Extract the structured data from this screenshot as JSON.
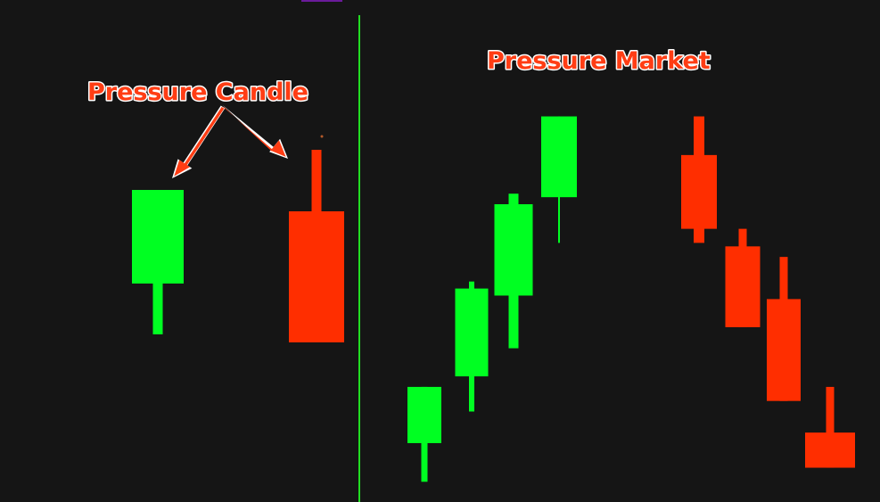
{
  "annotations": {
    "left_label": "Pressure Candle",
    "right_label": "Pressure Market"
  },
  "colors": {
    "background": "#151515",
    "bullish": "#00ff22",
    "bearish": "#ff2e00",
    "divider": "#22dd22",
    "annotation_fill": "#ff3d14",
    "annotation_outline": "#ffffff",
    "top_accent": "#6a1b9a"
  },
  "chart_data": [
    {
      "type": "candlestick",
      "title": "",
      "xlabel": "",
      "ylabel": "",
      "axes_visible": false,
      "grid": false,
      "candles": [
        {
          "index": 0,
          "direction": "bullish",
          "open": 44,
          "close": 79,
          "high": 79,
          "low": 25
        },
        {
          "index": 1,
          "direction": "bearish",
          "open": 71,
          "close": 22,
          "high": 94,
          "low": 22
        }
      ]
    },
    {
      "type": "candlestick",
      "title": "",
      "xlabel": "",
      "ylabel": "",
      "axes_visible": false,
      "grid": false,
      "candles": [
        {
          "index": 0,
          "direction": "bullish",
          "open": 16,
          "close": 32,
          "high": 32,
          "low": 5
        },
        {
          "index": 1,
          "direction": "bullish",
          "open": 35,
          "close": 60,
          "high": 62,
          "low": 25
        },
        {
          "index": 2,
          "direction": "bullish",
          "open": 58,
          "close": 84,
          "high": 87,
          "low": 43
        },
        {
          "index": 3,
          "direction": "bullish",
          "open": 86,
          "close": 109,
          "high": 109,
          "low": 73
        },
        {
          "index": 4,
          "direction": "bearish",
          "open": 98,
          "close": 77,
          "high": 109,
          "low": 73
        },
        {
          "index": 5,
          "direction": "bearish",
          "open": 72,
          "close": 49,
          "high": 77,
          "low": 49
        },
        {
          "index": 6,
          "direction": "bearish",
          "open": 57,
          "close": 28,
          "high": 69,
          "low": 28
        },
        {
          "index": 7,
          "direction": "bearish",
          "open": 19,
          "close": 9,
          "high": 32,
          "low": 9
        }
      ]
    }
  ]
}
